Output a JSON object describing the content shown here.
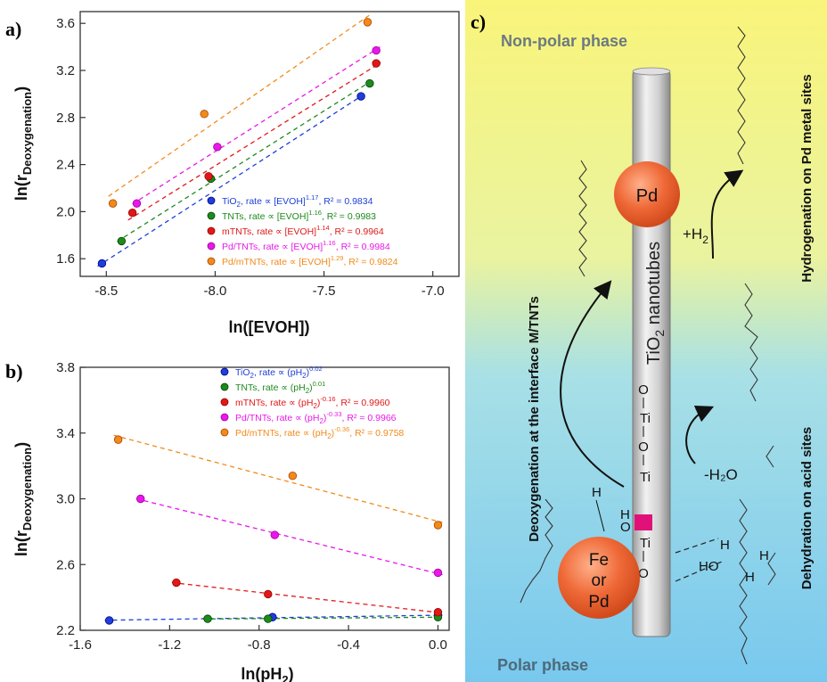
{
  "chart_data": [
    {
      "panel": "a)",
      "type": "scatter",
      "xlabel": "ln([EVOH])",
      "ylabel_main": "ln(r",
      "ylabel_sub": "Deoxygenation",
      "ylabel_close": ")",
      "xlim": [
        -8.62,
        -6.88
      ],
      "ylim": [
        1.45,
        3.7
      ],
      "xticks": [
        -8.5,
        -8.0,
        -7.5,
        -7.0
      ],
      "xtick_labels": [
        "-8.5",
        "-8.0",
        "-7.5",
        "-7.0"
      ],
      "yticks": [
        1.6,
        2.0,
        2.4,
        2.8,
        3.2,
        3.6
      ],
      "ytick_labels": [
        "1.6",
        "2.0",
        "2.4",
        "2.8",
        "3.2",
        "3.6"
      ],
      "legend_position": "bottom-right",
      "series": [
        {
          "name": "TiO2",
          "color": "#1f3fd6",
          "legend": {
            "pre": "TiO",
            "sub": "2",
            "mid": ", rate ∝ [EVOH]",
            "sup": "1.17",
            "post": ", R² = 0.9834"
          },
          "points": [
            [
              -8.52,
              1.56
            ],
            [
              -7.33,
              2.98
            ]
          ]
        },
        {
          "name": "TNTs",
          "color": "#1e8a1e",
          "legend": {
            "pre": "TNTs, rate ∝ [EVOH]",
            "sub": "",
            "mid": "",
            "sup": "1.16",
            "post": ", R² = 0.9983"
          },
          "points": [
            [
              -8.43,
              1.75
            ],
            [
              -8.02,
              2.28
            ],
            [
              -7.29,
              3.09
            ]
          ]
        },
        {
          "name": "mTNTs",
          "color": "#e01818",
          "legend": {
            "pre": "mTNTs, rate ∝ [EVOH]",
            "sub": "",
            "mid": "",
            "sup": "1.14",
            "post": ", R² = 0.9964"
          },
          "points": [
            [
              -8.38,
              1.99
            ],
            [
              -8.03,
              2.3
            ],
            [
              -7.26,
              3.26
            ]
          ]
        },
        {
          "name": "Pd/TNTs",
          "color": "#e818e8",
          "legend": {
            "pre": "Pd/TNTs, rate ∝ [EVOH]",
            "sub": "",
            "mid": "",
            "sup": "1.16",
            "post": ", R² = 0.9984"
          },
          "points": [
            [
              -8.36,
              2.07
            ],
            [
              -7.99,
              2.55
            ],
            [
              -7.26,
              3.37
            ]
          ]
        },
        {
          "name": "Pd/mTNTs",
          "color": "#f28a1a",
          "legend": {
            "pre": "Pd/mTNTs, rate ∝ [EVOH]",
            "sub": "",
            "mid": "",
            "sup": "1.29",
            "post": ", R² = 0.9824"
          },
          "points": [
            [
              -8.47,
              2.07
            ],
            [
              -8.05,
              2.83
            ],
            [
              -7.3,
              3.61
            ]
          ]
        }
      ]
    },
    {
      "panel": "b)",
      "type": "scatter",
      "xlabel": "ln(pH",
      "xlabel_sub": "2",
      "xlabel_close": ")",
      "ylabel_main": "ln(r",
      "ylabel_sub": "Deoxygenation",
      "ylabel_close": ")",
      "xlim": [
        -1.6,
        0.05
      ],
      "ylim": [
        2.2,
        3.8
      ],
      "xticks": [
        -1.6,
        -1.2,
        -0.8,
        -0.4,
        0.0
      ],
      "xtick_labels": [
        "-1.6",
        "-1.2",
        "-0.8",
        "-0.4",
        "0.0"
      ],
      "yticks": [
        2.2,
        2.6,
        3.0,
        3.4,
        3.8
      ],
      "ytick_labels": [
        "2.2",
        "2.6",
        "3.0",
        "3.4",
        "3.8"
      ],
      "legend_position": "top-center",
      "series": [
        {
          "name": "TiO2",
          "color": "#1f3fd6",
          "legend": {
            "pre": "TiO",
            "sub": "2",
            "mid": ", rate ∝ (pH",
            "sub2": "2",
            "close": ")",
            "sup": "0.02",
            "post": ""
          },
          "points": [
            [
              -1.47,
              2.26
            ],
            [
              -0.74,
              2.28
            ],
            [
              0.0,
              2.29
            ]
          ]
        },
        {
          "name": "TNTs",
          "color": "#1e8a1e",
          "legend": {
            "pre": "TNTs, rate ∝ (pH",
            "sub": "",
            "mid": "",
            "sub2": "2",
            "close": ")",
            "sup": "0.01",
            "post": ""
          },
          "points": [
            [
              -1.03,
              2.27
            ],
            [
              -0.76,
              2.27
            ],
            [
              0.0,
              2.28
            ]
          ]
        },
        {
          "name": "mTNTs",
          "color": "#e01818",
          "legend": {
            "pre": "mTNTs, rate ∝ (pH",
            "sub": "",
            "mid": "",
            "sub2": "2",
            "close": ")",
            "sup": "-0.16",
            "post": ", R² = 0.9960"
          },
          "points": [
            [
              -1.17,
              2.49
            ],
            [
              -0.76,
              2.42
            ],
            [
              0.0,
              2.31
            ]
          ]
        },
        {
          "name": "Pd/TNTs",
          "color": "#e818e8",
          "legend": {
            "pre": "Pd/TNTs, rate ∝ (pH",
            "sub": "",
            "mid": "",
            "sub2": "2",
            "close": ")",
            "sup": "-0.33",
            "post": ", R² = 0.9966"
          },
          "points": [
            [
              -1.33,
              3.0
            ],
            [
              -0.73,
              2.78
            ],
            [
              0.0,
              2.55
            ]
          ]
        },
        {
          "name": "Pd/mTNTs",
          "color": "#f28a1a",
          "legend": {
            "pre": "Pd/mTNTs, rate ∝ (pH",
            "sub": "",
            "mid": "",
            "sub2": "2",
            "close": ")",
            "sup": "-0.36",
            "post": ", R² = 0.9758"
          },
          "points": [
            [
              -1.43,
              3.36
            ],
            [
              -0.65,
              3.14
            ],
            [
              0.0,
              2.84
            ]
          ]
        }
      ]
    }
  ],
  "schematic": {
    "panel": "c)",
    "top_phase": "Non-polar phase",
    "bottom_phase": "Polar phase",
    "tube_label_pre": "TiO",
    "tube_label_sub": "2",
    "tube_label_post": " nanotubes",
    "pd_label": "Pd",
    "fe_pd_label": [
      "Fe",
      "or",
      "Pd"
    ],
    "h2_label_pre": "+H",
    "h2_label_sub": "2",
    "water_label": "-H₂O",
    "chain_atoms": [
      "O",
      "Ti",
      "O",
      "Ti",
      "Ti",
      "O"
    ],
    "left_side_label": "Deoxygenation at the interface M/TNTs",
    "right_top_label": "Hydrogenation on Pd metal sites",
    "right_bottom_label": "Dehydration on acid sites",
    "mol_h": "H",
    "mol_ho": "HO",
    "surface_h": "H",
    "surface_o": "O",
    "surface_h2": "H",
    "colors": {
      "top": "#f7f07a",
      "bottom": "#7fcdf0",
      "tube": "#c9c9c9",
      "sphere": "#ef6b3a",
      "acid_site": "#e0127a"
    }
  }
}
